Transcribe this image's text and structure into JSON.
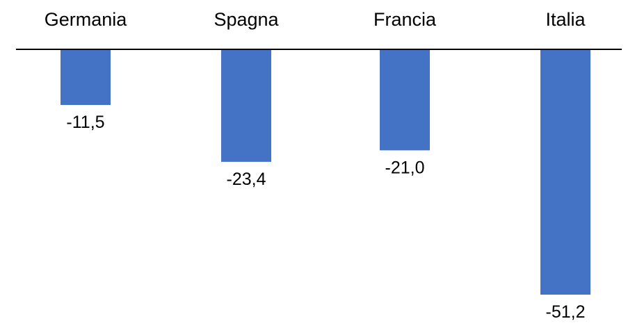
{
  "chart_data": {
    "type": "bar",
    "categories": [
      "Germania",
      "Spagna",
      "Francia",
      "Italia"
    ],
    "values": [
      -11.5,
      -23.4,
      -21.0,
      -51.2
    ],
    "data_labels": [
      "-11,5",
      "-23,4",
      "-21,0",
      "-51,2"
    ],
    "title": "",
    "xlabel": "",
    "ylabel": "",
    "ylim": [
      -51.2,
      0
    ],
    "category_labels_position": "top",
    "grid": false,
    "legend": false,
    "bar_color": "#4472C4",
    "axis_color": "#000000"
  }
}
